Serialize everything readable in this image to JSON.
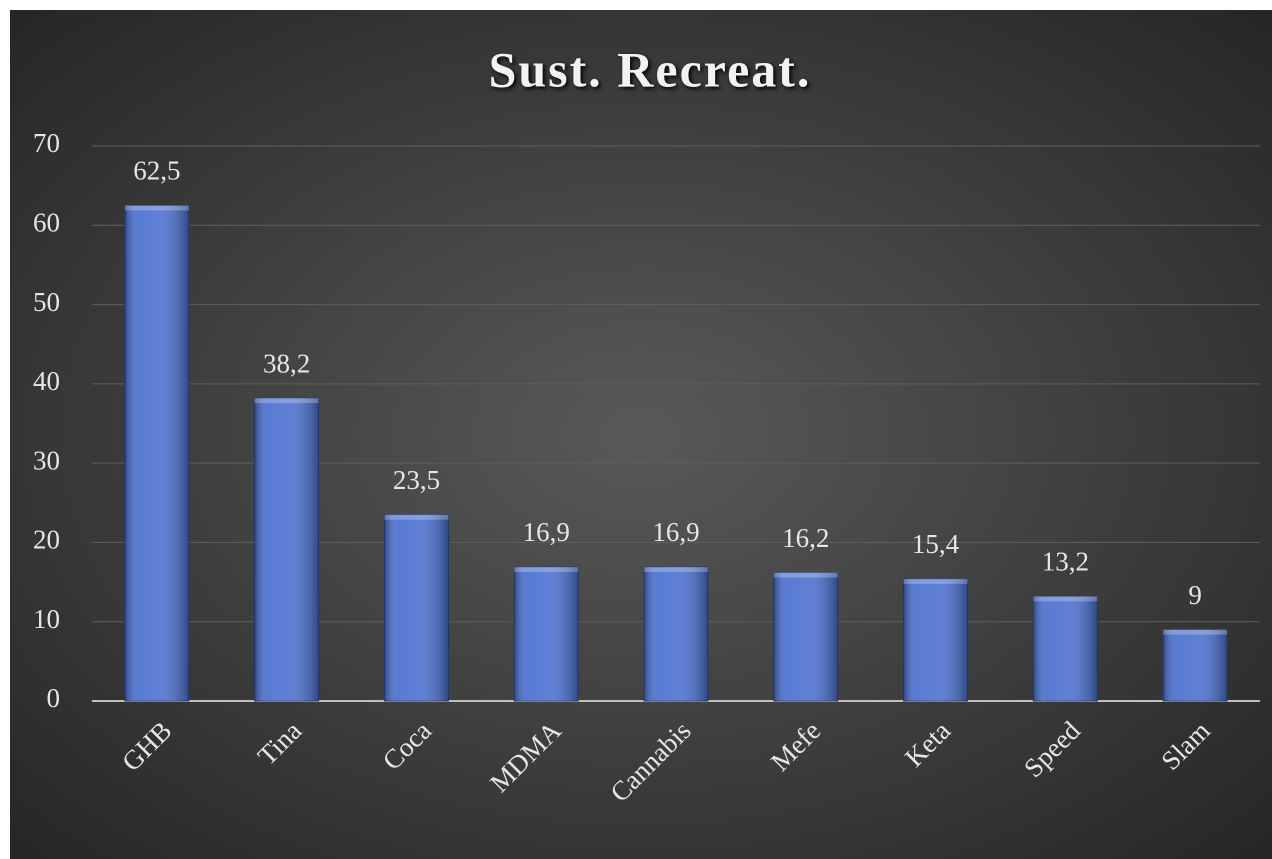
{
  "chart_data": {
    "type": "bar",
    "title": "Sust. Recreat.",
    "categories": [
      "GHB",
      "Tina",
      "Coca",
      "MDMA",
      "Cannabis",
      "Mefe",
      "Keta",
      "Speed",
      "Slam"
    ],
    "values": [
      62.5,
      38.2,
      23.5,
      16.9,
      16.9,
      16.2,
      15.4,
      13.2,
      9
    ],
    "value_labels": [
      "62,5",
      "38,2",
      "23,5",
      "16,9",
      "16,9",
      "16,2",
      "15,4",
      "13,2",
      "9"
    ],
    "color": "#4a6fcf",
    "ylim": [
      0,
      70
    ],
    "yticks": [
      0,
      10,
      20,
      30,
      40,
      50,
      60,
      70
    ],
    "grid": true
  }
}
